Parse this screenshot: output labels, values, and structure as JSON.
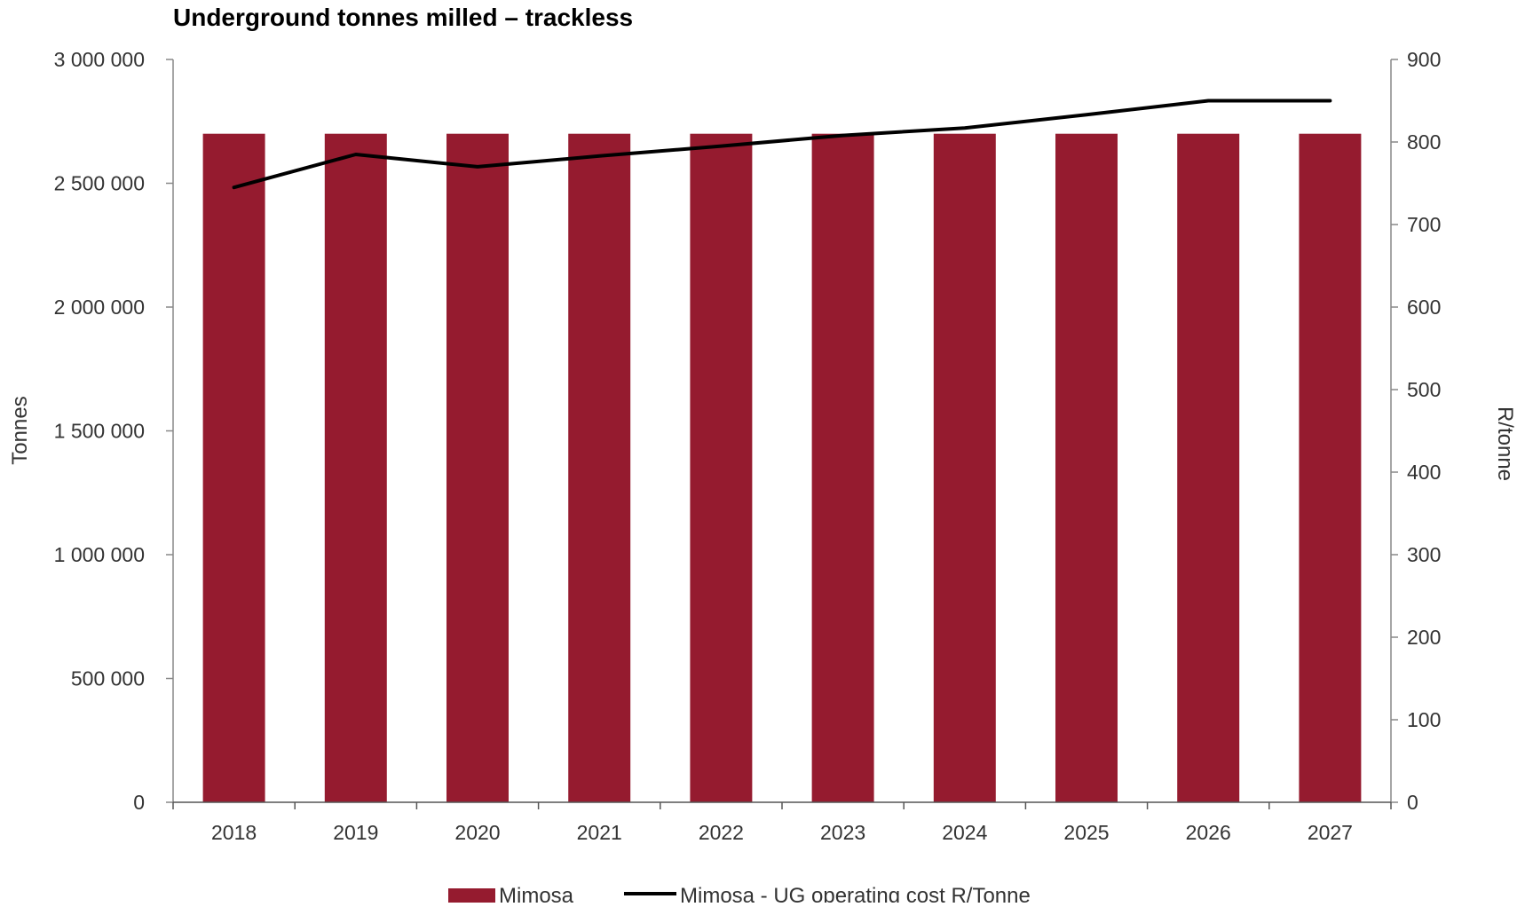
{
  "chart_data": {
    "type": "bar",
    "title": "Underground tonnes milled – trackless",
    "categories": [
      "2018",
      "2019",
      "2020",
      "2021",
      "2022",
      "2023",
      "2024",
      "2025",
      "2026",
      "2027"
    ],
    "series": [
      {
        "name": "Mimosa",
        "type": "bar",
        "axis": "left",
        "color": "#951b2f",
        "values": [
          2700000,
          2700000,
          2700000,
          2700000,
          2700000,
          2700000,
          2700000,
          2700000,
          2700000,
          2700000
        ]
      },
      {
        "name": "Mimosa - UG operating cost R/Tonne",
        "type": "line",
        "axis": "right",
        "color": "#000000",
        "values": [
          745,
          785,
          770,
          783,
          795,
          808,
          817,
          833,
          850,
          850
        ]
      }
    ],
    "ylabel_left": "Tonnes",
    "ylabel_right": "R/tonne",
    "ylim_left": [
      0,
      3000000
    ],
    "ylim_right": [
      0,
      900
    ],
    "yticks_left": [
      "0",
      "500 000",
      "1 000 000",
      "1 500 000",
      "2 000 000",
      "2 500 000",
      "3 000 000"
    ],
    "yticks_right": [
      "0",
      "100",
      "200",
      "300",
      "400",
      "500",
      "600",
      "700",
      "800",
      "900"
    ],
    "grid": false,
    "legend_position": "bottom"
  }
}
